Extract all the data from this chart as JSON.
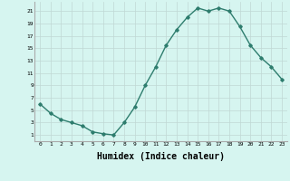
{
  "x": [
    0,
    1,
    2,
    3,
    4,
    5,
    6,
    7,
    8,
    9,
    10,
    11,
    12,
    13,
    14,
    15,
    16,
    17,
    18,
    19,
    20,
    21,
    22,
    23
  ],
  "y": [
    6,
    4.5,
    3.5,
    3,
    2.5,
    1.5,
    1.2,
    1,
    3,
    5.5,
    9,
    12,
    15.5,
    18,
    20,
    21.5,
    21,
    21.5,
    21,
    18.5,
    15.5,
    13.5,
    12,
    10
  ],
  "line_color": "#2e7d6e",
  "marker": "D",
  "markersize": 1.8,
  "linewidth": 1.0,
  "bg_color": "#d6f5f0",
  "grid_color": "#c0d8d4",
  "xlabel": "Humidex (Indice chaleur)",
  "xlabel_fontsize": 7,
  "ytick_values": [
    1,
    3,
    5,
    7,
    9,
    11,
    13,
    15,
    17,
    19,
    21
  ],
  "xtick_values": [
    0,
    1,
    2,
    3,
    4,
    5,
    6,
    7,
    8,
    9,
    10,
    11,
    12,
    13,
    14,
    15,
    16,
    17,
    18,
    19,
    20,
    21,
    22,
    23
  ],
  "ylim": [
    0,
    22.5
  ],
  "xlim": [
    -0.5,
    23.5
  ]
}
